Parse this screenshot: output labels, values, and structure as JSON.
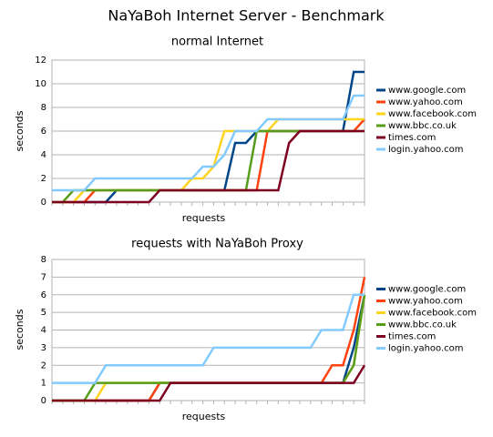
{
  "title": "NaYaBoh Internet Server - Benchmark",
  "chart_data": [
    {
      "type": "line",
      "title": "normal Internet",
      "x_label": "requests",
      "y_label": "seconds",
      "categories": [
        null,
        null,
        null,
        null,
        null,
        null,
        null,
        null,
        null,
        null,
        null,
        null,
        null,
        null,
        null,
        null,
        null,
        null,
        null,
        null,
        null,
        null,
        null,
        null,
        null,
        null,
        null,
        null,
        null,
        null
      ],
      "ylim": [
        0,
        12
      ],
      "yticks": [
        0,
        2,
        4,
        6,
        8,
        10,
        12
      ],
      "grid": true,
      "legend": "right",
      "series": [
        {
          "name": "www.google.com",
          "color": "#004586",
          "values": [
            0,
            0,
            0,
            0,
            0,
            0,
            1,
            1,
            1,
            1,
            1,
            1,
            1,
            1,
            1,
            1,
            1,
            5,
            5,
            6,
            6,
            6,
            6,
            6,
            6,
            6,
            6,
            6,
            11,
            11
          ]
        },
        {
          "name": "www.yahoo.com",
          "color": "#ff420e",
          "values": [
            0,
            0,
            0,
            0,
            1,
            1,
            1,
            1,
            1,
            1,
            1,
            1,
            1,
            1,
            1,
            1,
            1,
            1,
            1,
            1,
            6,
            6,
            6,
            6,
            6,
            6,
            6,
            6,
            6,
            7
          ]
        },
        {
          "name": "www.facebook.com",
          "color": "#ffd320",
          "values": [
            0,
            0,
            0,
            1,
            1,
            1,
            1,
            1,
            1,
            1,
            1,
            1,
            1,
            2,
            2,
            3,
            6,
            6,
            6,
            6,
            6,
            7,
            7,
            7,
            7,
            7,
            7,
            7,
            7,
            7
          ]
        },
        {
          "name": "www.bbc.co.uk",
          "color": "#579d1c",
          "values": [
            0,
            0,
            1,
            1,
            1,
            1,
            1,
            1,
            1,
            1,
            1,
            1,
            1,
            1,
            1,
            1,
            1,
            1,
            1,
            6,
            6,
            6,
            6,
            6,
            6,
            6,
            6,
            6,
            6,
            6
          ]
        },
        {
          "name": "times.com",
          "color": "#7e0021",
          "values": [
            0,
            0,
            0,
            0,
            0,
            0,
            0,
            0,
            0,
            0,
            1,
            1,
            1,
            1,
            1,
            1,
            1,
            1,
            1,
            1,
            1,
            1,
            5,
            6,
            6,
            6,
            6,
            6,
            6,
            6
          ]
        },
        {
          "name": "login.yahoo.com",
          "color": "#83caff",
          "values": [
            1,
            1,
            1,
            1,
            2,
            2,
            2,
            2,
            2,
            2,
            2,
            2,
            2,
            2,
            3,
            3,
            4,
            6,
            6,
            6,
            7,
            7,
            7,
            7,
            7,
            7,
            7,
            7,
            9,
            9
          ]
        }
      ]
    },
    {
      "type": "line",
      "title": "requests with NaYaBoh Proxy",
      "x_label": "requests",
      "y_label": "seconds",
      "categories": [
        null,
        null,
        null,
        null,
        null,
        null,
        null,
        null,
        null,
        null,
        null,
        null,
        null,
        null,
        null,
        null,
        null,
        null,
        null,
        null,
        null,
        null,
        null,
        null,
        null,
        null,
        null,
        null,
        null,
        null
      ],
      "ylim": [
        0,
        8
      ],
      "yticks": [
        0,
        1,
        2,
        3,
        4,
        5,
        6,
        7,
        8
      ],
      "grid": true,
      "legend": "right",
      "series": [
        {
          "name": "www.google.com",
          "color": "#004586",
          "values": [
            0,
            0,
            0,
            0,
            0,
            0,
            0,
            0,
            0,
            0,
            1,
            1,
            1,
            1,
            1,
            1,
            1,
            1,
            1,
            1,
            1,
            1,
            1,
            1,
            1,
            1,
            1,
            1,
            3,
            6
          ]
        },
        {
          "name": "www.yahoo.com",
          "color": "#ff420e",
          "values": [
            0,
            0,
            0,
            0,
            0,
            0,
            0,
            0,
            0,
            0,
            1,
            1,
            1,
            1,
            1,
            1,
            1,
            1,
            1,
            1,
            1,
            1,
            1,
            1,
            1,
            1,
            2,
            2,
            4,
            7
          ]
        },
        {
          "name": "www.facebook.com",
          "color": "#ffd320",
          "values": [
            0,
            0,
            0,
            0,
            0,
            1,
            1,
            1,
            1,
            1,
            1,
            1,
            1,
            1,
            1,
            1,
            1,
            1,
            1,
            1,
            1,
            1,
            1,
            1,
            1,
            1,
            1,
            1,
            2,
            6
          ]
        },
        {
          "name": "www.bbc.co.uk",
          "color": "#579d1c",
          "values": [
            0,
            0,
            0,
            0,
            1,
            1,
            1,
            1,
            1,
            1,
            1,
            1,
            1,
            1,
            1,
            1,
            1,
            1,
            1,
            1,
            1,
            1,
            1,
            1,
            1,
            1,
            1,
            1,
            2,
            6
          ]
        },
        {
          "name": "times.com",
          "color": "#7e0021",
          "values": [
            0,
            0,
            0,
            0,
            0,
            0,
            0,
            0,
            0,
            0,
            0,
            1,
            1,
            1,
            1,
            1,
            1,
            1,
            1,
            1,
            1,
            1,
            1,
            1,
            1,
            1,
            1,
            1,
            1,
            2
          ]
        },
        {
          "name": "login.yahoo.com",
          "color": "#83caff",
          "values": [
            1,
            1,
            1,
            1,
            1,
            2,
            2,
            2,
            2,
            2,
            2,
            2,
            2,
            2,
            2,
            3,
            3,
            3,
            3,
            3,
            3,
            3,
            3,
            3,
            3,
            4,
            4,
            4,
            6,
            6
          ]
        }
      ]
    }
  ]
}
